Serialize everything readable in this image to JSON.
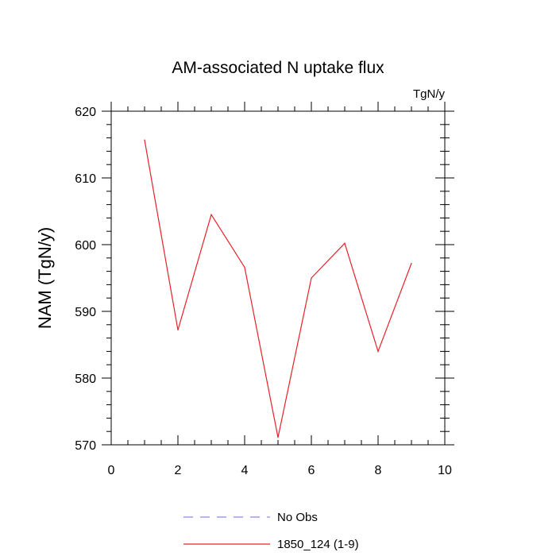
{
  "chart_data": {
    "type": "line",
    "title": "AM-associated N uptake flux",
    "units_label": "TgN/y",
    "xlabel": "",
    "ylabel": "NAM  (TgN/y)",
    "xlim": [
      0,
      10
    ],
    "ylim": [
      570,
      620
    ],
    "x_ticks": [
      0,
      2,
      4,
      6,
      8,
      10
    ],
    "y_ticks": [
      570,
      580,
      590,
      600,
      610,
      620
    ],
    "grid": false,
    "legend_position": "bottom-center",
    "series": [
      {
        "name": "No Obs",
        "style": "dashed",
        "color": "#8a8ae0",
        "x": [],
        "y": []
      },
      {
        "name": "1850_124 (1-9)",
        "style": "solid",
        "color": "#e8202a",
        "x": [
          1,
          2,
          3,
          4,
          5,
          6,
          7,
          8,
          9
        ],
        "y": [
          615.7,
          587.2,
          604.5,
          596.6,
          571.1,
          595.0,
          600.2,
          584.0,
          597.2
        ]
      }
    ]
  }
}
